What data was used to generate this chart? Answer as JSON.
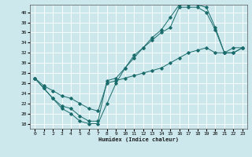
{
  "title": "",
  "xlabel": "Humidex (Indice chaleur)",
  "xlim": [
    -0.5,
    23.5
  ],
  "ylim": [
    17,
    41.5
  ],
  "yticks": [
    18,
    20,
    22,
    24,
    26,
    28,
    30,
    32,
    34,
    36,
    38,
    40
  ],
  "xticks": [
    0,
    1,
    2,
    3,
    4,
    5,
    6,
    7,
    8,
    9,
    10,
    11,
    12,
    13,
    14,
    15,
    16,
    17,
    18,
    19,
    20,
    21,
    22,
    23
  ],
  "bg_color": "#cce8ed",
  "grid_color": "#ffffff",
  "line_color": "#1a6b6b",
  "line1_x": [
    0,
    1,
    2,
    3,
    4,
    5,
    6,
    7,
    8,
    9,
    10,
    11,
    12,
    13,
    14,
    15,
    16,
    17,
    18,
    19,
    20,
    21,
    22,
    23
  ],
  "line1_y": [
    27,
    25,
    23,
    21,
    20,
    18.5,
    18,
    18,
    22,
    26,
    29,
    31,
    33,
    34.5,
    36,
    37,
    41,
    41,
    41,
    40,
    36.5,
    32,
    32,
    33
  ],
  "line2_x": [
    0,
    1,
    2,
    3,
    4,
    5,
    6,
    7,
    8,
    9,
    10,
    11,
    12,
    13,
    14,
    15,
    16,
    17,
    18,
    19,
    20,
    21,
    22,
    23
  ],
  "line2_y": [
    27,
    25,
    23,
    21.5,
    21,
    19.5,
    18.5,
    18.5,
    26.5,
    27,
    29,
    31.5,
    33,
    35,
    36.5,
    39,
    41.5,
    41.5,
    41.5,
    41,
    37,
    32,
    32,
    33
  ],
  "line3_x": [
    0,
    1,
    2,
    3,
    4,
    5,
    6,
    7,
    8,
    9,
    10,
    11,
    12,
    13,
    14,
    15,
    16,
    17,
    18,
    19,
    20,
    21,
    22,
    23
  ],
  "line3_y": [
    27,
    25.5,
    24.5,
    23.5,
    23,
    22,
    21,
    20.5,
    26,
    26.5,
    27,
    27.5,
    28,
    28.5,
    29,
    30,
    31,
    32,
    32.5,
    33,
    32,
    32,
    33,
    33
  ]
}
